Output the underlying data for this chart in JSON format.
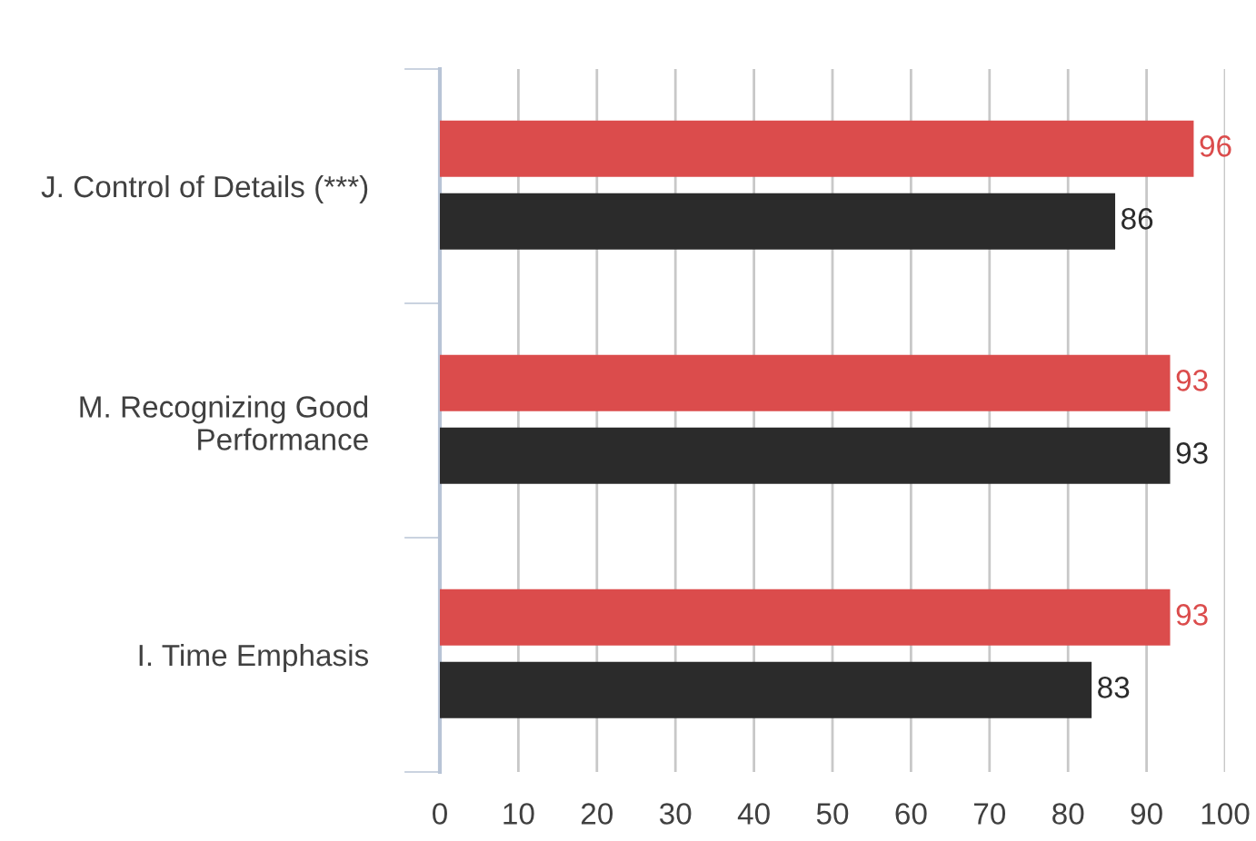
{
  "chart_data": {
    "type": "bar",
    "orientation": "horizontal",
    "categories": [
      "J. Control of Details (***)",
      "M. Recognizing Good Performance",
      "I. Time Emphasis"
    ],
    "series": [
      {
        "color": "#db4c4c",
        "values": [
          96,
          93,
          93
        ]
      },
      {
        "color": "#2b2b2b",
        "values": [
          86,
          93,
          83
        ]
      }
    ],
    "xlim": [
      0,
      100
    ],
    "xticks": [
      0,
      10,
      20,
      30,
      40,
      50,
      60,
      70,
      80,
      90,
      100
    ],
    "grid": "x",
    "data_labels": true
  }
}
